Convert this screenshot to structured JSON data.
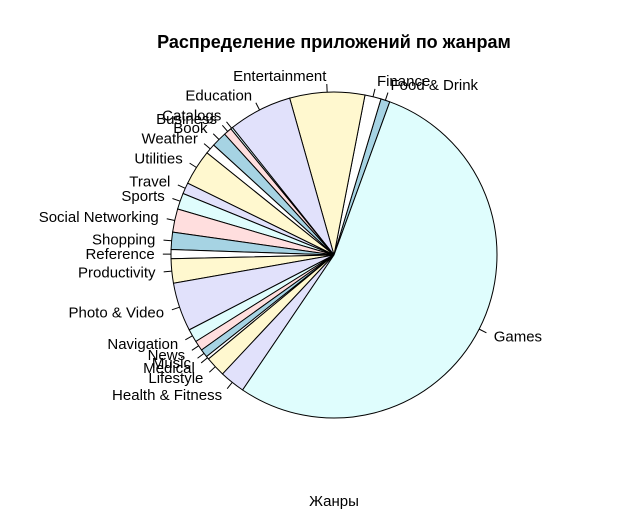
{
  "chart_data": {
    "type": "pie",
    "title": "Распределение приложений по жанрам",
    "xlabel": "Жанры",
    "palette": [
      "#a6d3e3",
      "#ffffff",
      "#fff8cf",
      "#e1e1fb",
      "#dffdfd",
      "#ffdede"
    ],
    "slices": [
      {
        "label": "Food & Drink",
        "value": 0.9
      },
      {
        "label": "Finance",
        "value": 1.6
      },
      {
        "label": "Entertainment",
        "value": 7.4
      },
      {
        "label": "Education",
        "value": 6.3
      },
      {
        "label": "Catalogs",
        "value": 0.2
      },
      {
        "label": "Business",
        "value": 0.8
      },
      {
        "label": "Book",
        "value": 1.5
      },
      {
        "label": "Weather",
        "value": 1.0
      },
      {
        "label": "Utilities",
        "value": 3.5
      },
      {
        "label": "Travel",
        "value": 1.1
      },
      {
        "label": "Sports",
        "value": 1.6
      },
      {
        "label": "Social Networking",
        "value": 2.3
      },
      {
        "label": "Shopping",
        "value": 1.7
      },
      {
        "label": "Reference",
        "value": 0.9
      },
      {
        "label": "Productivity",
        "value": 2.4
      },
      {
        "label": "Photo & Video",
        "value": 4.8
      },
      {
        "label": "Navigation",
        "value": 1.3
      },
      {
        "label": "News",
        "value": 1.0
      },
      {
        "label": "Music",
        "value": 0.8
      },
      {
        "label": "Medical",
        "value": 0.3
      },
      {
        "label": "Lifestyle",
        "value": 2.0
      },
      {
        "label": "Health & Fitness",
        "value": 2.5
      },
      {
        "label": "Games",
        "value": 53.7
      }
    ]
  }
}
